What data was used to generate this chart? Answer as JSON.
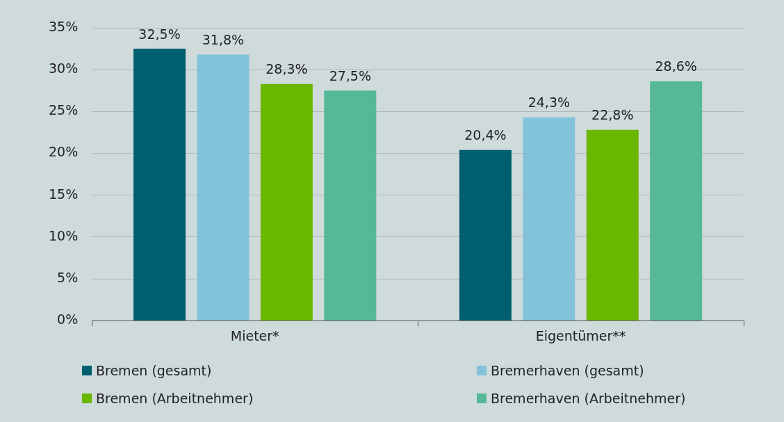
{
  "chart_data": {
    "type": "bar",
    "categories": [
      "Mieter*",
      "Eigentümer**"
    ],
    "series": [
      {
        "name": "Bremen (gesamt)",
        "color": "#005f6e",
        "values": [
          32.5,
          20.4
        ],
        "value_labels": [
          "32,5%",
          "20,4%"
        ]
      },
      {
        "name": "Bremerhaven (gesamt)",
        "color": "#82c3da",
        "values": [
          31.8,
          24.3
        ],
        "value_labels": [
          "31,8%",
          "24,3%"
        ]
      },
      {
        "name": "Bremen (Arbeitnehmer)",
        "color": "#6ab700",
        "values": [
          28.3,
          22.8
        ],
        "value_labels": [
          "28,3%",
          "22,8%"
        ]
      },
      {
        "name": "Bremerhaven (Arbeitnehmer)",
        "color": "#55b896",
        "values": [
          27.5,
          28.6
        ],
        "value_labels": [
          "27,5%",
          "28,6%"
        ]
      }
    ],
    "ylim": [
      0,
      35
    ],
    "yticks": [
      {
        "value": 0,
        "label": "0%"
      },
      {
        "value": 5,
        "label": "5%"
      },
      {
        "value": 10,
        "label": "10%"
      },
      {
        "value": 15,
        "label": "15%"
      },
      {
        "value": 20,
        "label": "20%"
      },
      {
        "value": 25,
        "label": "25%"
      },
      {
        "value": 30,
        "label": "30%"
      },
      {
        "value": 35,
        "label": "35%"
      }
    ],
    "grid": "y",
    "legend": "bottom"
  }
}
